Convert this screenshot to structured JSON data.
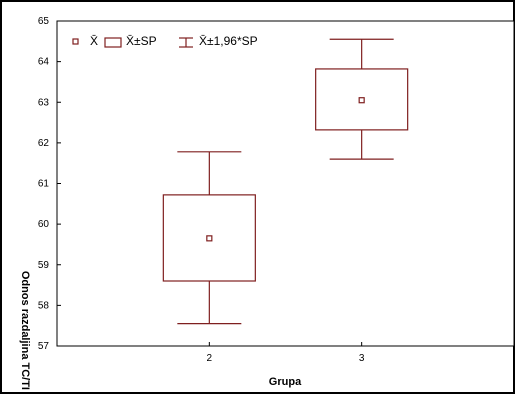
{
  "chart_data": {
    "type": "box",
    "xlabel": "Grupa",
    "ylabel": "Odnos razdaljina TC/TI",
    "ylim": [
      57,
      65
    ],
    "yticks": [
      57,
      58,
      59,
      60,
      61,
      62,
      63,
      64,
      65
    ],
    "categories": [
      "2",
      "3"
    ],
    "x_range": [
      1,
      4
    ],
    "series": [
      {
        "category": "2",
        "mean": 59.65,
        "se_low": 58.6,
        "se_high": 60.72,
        "ci_low": 57.55,
        "ci_high": 61.78
      },
      {
        "category": "3",
        "mean": 63.05,
        "se_low": 62.32,
        "se_high": 63.82,
        "ci_low": 61.6,
        "ci_high": 64.55
      }
    ],
    "legend": [
      {
        "marker": "point",
        "label": "X̄"
      },
      {
        "marker": "box",
        "label": "X̄±SP"
      },
      {
        "marker": "whisker",
        "label": "X̄±1,96*SP"
      }
    ],
    "legend_position": "top-left",
    "grid": false,
    "colors": {
      "box": "#7f1f1f",
      "axis": "#000000"
    }
  }
}
